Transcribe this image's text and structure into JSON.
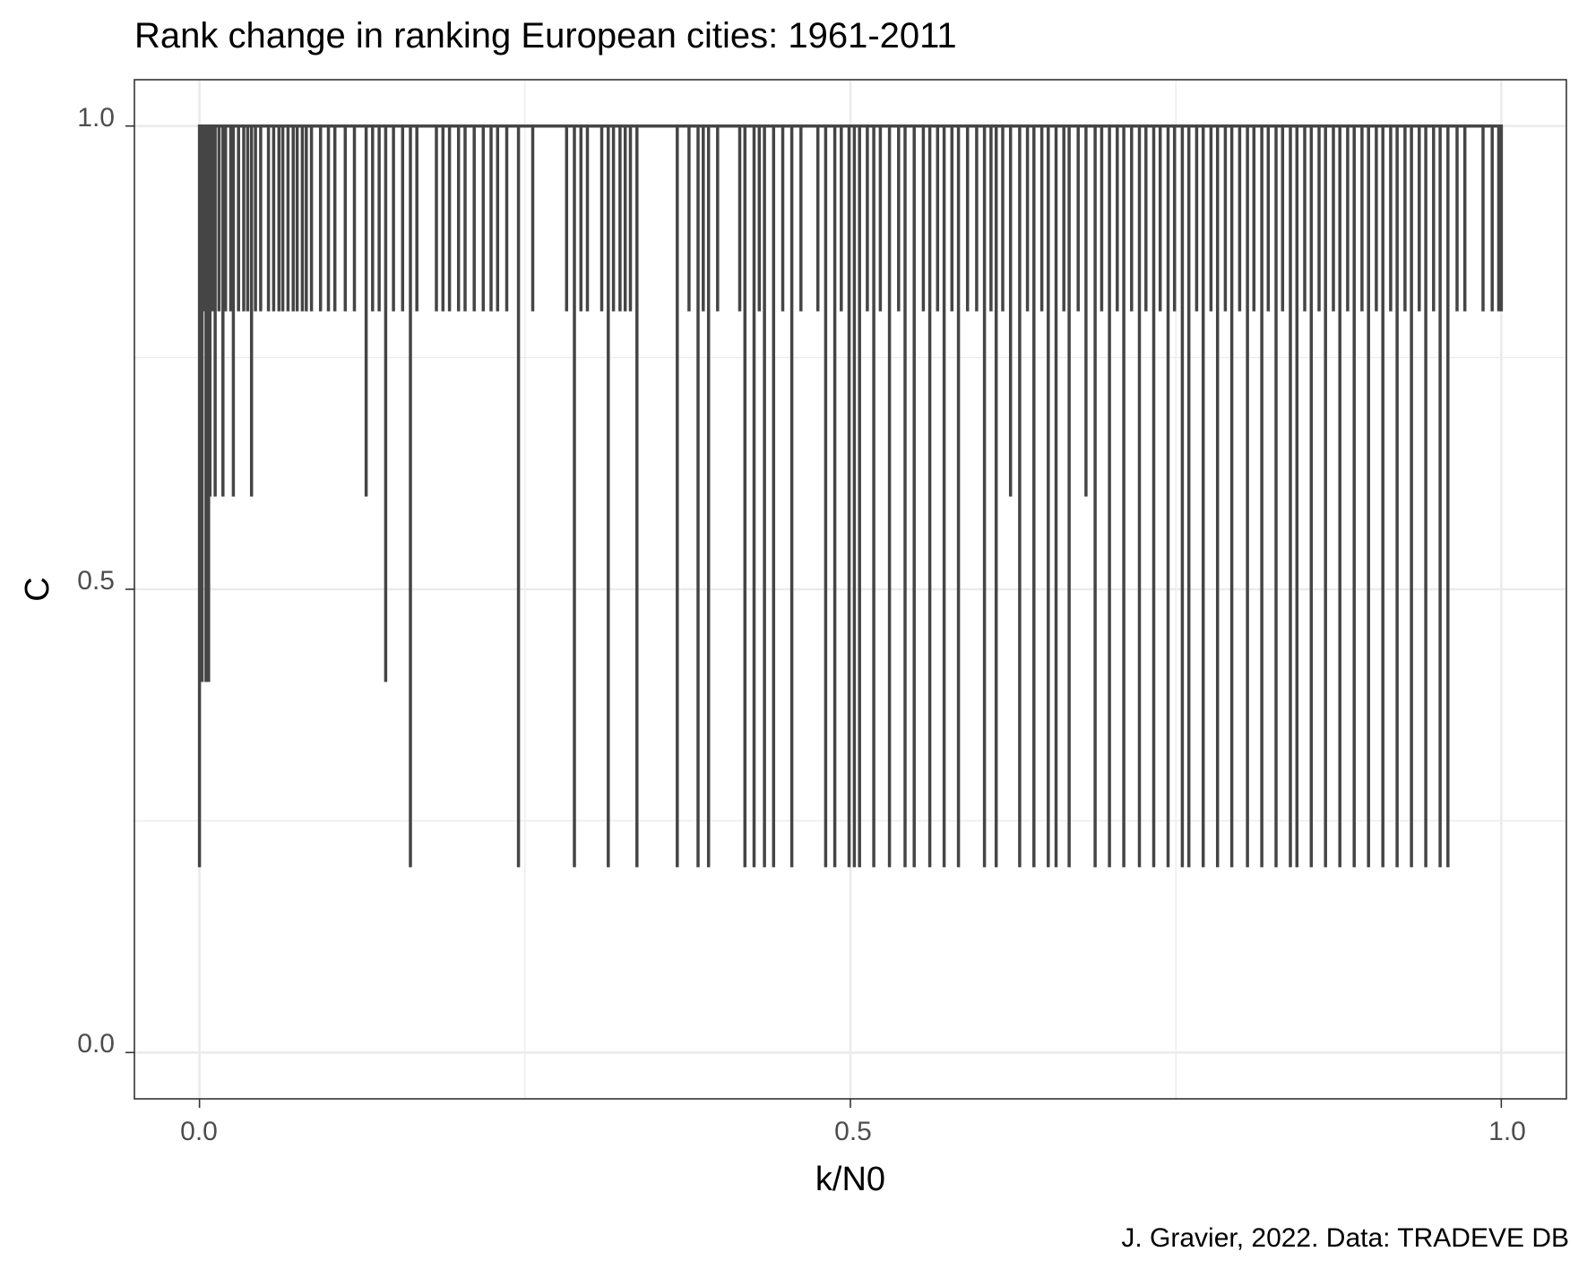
{
  "chart_data": {
    "type": "line",
    "title": "Rank change in ranking European cities: 1961-2011",
    "xlabel": "k/N0",
    "ylabel": "C",
    "caption": "J. Gravier, 2022. Data: TRADEVE DB",
    "xlim": [
      -0.05,
      1.05
    ],
    "ylim": [
      -0.05,
      1.05
    ],
    "x_ticks": [
      "0.0",
      "0.5",
      "1.0"
    ],
    "y_ticks": [
      "0.0",
      "0.5",
      "1.0"
    ],
    "grid": true,
    "baseline": 1.0,
    "series": [
      {
        "color": "#454545",
        "note": "Step series: value equals 1.0 except at the listed dips (x, y)",
        "dips": [
          [
            0.0,
            0.2
          ],
          [
            0.001,
            0.6
          ],
          [
            0.002,
            0.4
          ],
          [
            0.004,
            0.8
          ],
          [
            0.005,
            0.4
          ],
          [
            0.007,
            0.4
          ],
          [
            0.008,
            0.6
          ],
          [
            0.01,
            0.8
          ],
          [
            0.012,
            0.6
          ],
          [
            0.015,
            0.8
          ],
          [
            0.018,
            0.6
          ],
          [
            0.02,
            0.8
          ],
          [
            0.024,
            0.8
          ],
          [
            0.026,
            0.6
          ],
          [
            0.03,
            0.8
          ],
          [
            0.034,
            0.8
          ],
          [
            0.037,
            0.8
          ],
          [
            0.04,
            0.6
          ],
          [
            0.043,
            0.8
          ],
          [
            0.047,
            0.8
          ],
          [
            0.053,
            0.8
          ],
          [
            0.057,
            0.8
          ],
          [
            0.061,
            0.8
          ],
          [
            0.064,
            0.8
          ],
          [
            0.068,
            0.8
          ],
          [
            0.072,
            0.8
          ],
          [
            0.075,
            0.8
          ],
          [
            0.079,
            0.8
          ],
          [
            0.082,
            0.8
          ],
          [
            0.086,
            0.8
          ],
          [
            0.093,
            0.8
          ],
          [
            0.099,
            0.8
          ],
          [
            0.104,
            0.8
          ],
          [
            0.112,
            0.8
          ],
          [
            0.119,
            0.8
          ],
          [
            0.128,
            0.6
          ],
          [
            0.133,
            0.8
          ],
          [
            0.138,
            0.8
          ],
          [
            0.143,
            0.4
          ],
          [
            0.149,
            0.8
          ],
          [
            0.156,
            0.8
          ],
          [
            0.162,
            0.2
          ],
          [
            0.167,
            0.8
          ],
          [
            0.182,
            0.8
          ],
          [
            0.187,
            0.8
          ],
          [
            0.192,
            0.8
          ],
          [
            0.199,
            0.8
          ],
          [
            0.204,
            0.8
          ],
          [
            0.211,
            0.8
          ],
          [
            0.218,
            0.8
          ],
          [
            0.224,
            0.8
          ],
          [
            0.229,
            0.8
          ],
          [
            0.236,
            0.8
          ],
          [
            0.245,
            0.2
          ],
          [
            0.256,
            0.8
          ],
          [
            0.282,
            0.8
          ],
          [
            0.288,
            0.2
          ],
          [
            0.293,
            0.8
          ],
          [
            0.298,
            0.8
          ],
          [
            0.309,
            0.8
          ],
          [
            0.314,
            0.2
          ],
          [
            0.318,
            0.8
          ],
          [
            0.323,
            0.8
          ],
          [
            0.327,
            0.8
          ],
          [
            0.331,
            0.8
          ],
          [
            0.336,
            0.2
          ],
          [
            0.367,
            0.2
          ],
          [
            0.376,
            0.8
          ],
          [
            0.383,
            0.2
          ],
          [
            0.387,
            0.8
          ],
          [
            0.391,
            0.2
          ],
          [
            0.398,
            0.8
          ],
          [
            0.415,
            0.8
          ],
          [
            0.419,
            0.2
          ],
          [
            0.426,
            0.2
          ],
          [
            0.43,
            0.8
          ],
          [
            0.434,
            0.2
          ],
          [
            0.441,
            0.2
          ],
          [
            0.448,
            0.8
          ],
          [
            0.455,
            0.2
          ],
          [
            0.462,
            0.8
          ],
          [
            0.475,
            0.8
          ],
          [
            0.481,
            0.2
          ],
          [
            0.488,
            0.2
          ],
          [
            0.493,
            0.8
          ],
          [
            0.499,
            0.2
          ],
          [
            0.503,
            0.2
          ],
          [
            0.507,
            0.2
          ],
          [
            0.513,
            0.8
          ],
          [
            0.518,
            0.2
          ],
          [
            0.523,
            0.8
          ],
          [
            0.53,
            0.2
          ],
          [
            0.537,
            0.8
          ],
          [
            0.542,
            0.2
          ],
          [
            0.549,
            0.2
          ],
          [
            0.556,
            0.8
          ],
          [
            0.561,
            0.2
          ],
          [
            0.567,
            0.8
          ],
          [
            0.572,
            0.2
          ],
          [
            0.578,
            0.8
          ],
          [
            0.583,
            0.2
          ],
          [
            0.59,
            0.8
          ],
          [
            0.597,
            0.8
          ],
          [
            0.603,
            0.2
          ],
          [
            0.608,
            0.8
          ],
          [
            0.612,
            0.2
          ],
          [
            0.617,
            0.8
          ],
          [
            0.623,
            0.6
          ],
          [
            0.63,
            0.2
          ],
          [
            0.636,
            0.8
          ],
          [
            0.641,
            0.2
          ],
          [
            0.647,
            0.8
          ],
          [
            0.652,
            0.2
          ],
          [
            0.658,
            0.2
          ],
          [
            0.664,
            0.8
          ],
          [
            0.668,
            0.2
          ],
          [
            0.675,
            0.8
          ],
          [
            0.681,
            0.6
          ],
          [
            0.688,
            0.2
          ],
          [
            0.693,
            0.8
          ],
          [
            0.699,
            0.2
          ],
          [
            0.705,
            0.8
          ],
          [
            0.71,
            0.2
          ],
          [
            0.716,
            0.8
          ],
          [
            0.722,
            0.2
          ],
          [
            0.727,
            0.8
          ],
          [
            0.733,
            0.2
          ],
          [
            0.738,
            0.8
          ],
          [
            0.744,
            0.2
          ],
          [
            0.749,
            0.8
          ],
          [
            0.755,
            0.2
          ],
          [
            0.76,
            0.2
          ],
          [
            0.766,
            0.8
          ],
          [
            0.771,
            0.2
          ],
          [
            0.777,
            0.8
          ],
          [
            0.782,
            0.2
          ],
          [
            0.788,
            0.8
          ],
          [
            0.793,
            0.2
          ],
          [
            0.799,
            0.8
          ],
          [
            0.805,
            0.2
          ],
          [
            0.81,
            0.8
          ],
          [
            0.816,
            0.2
          ],
          [
            0.821,
            0.8
          ],
          [
            0.827,
            0.2
          ],
          [
            0.832,
            0.8
          ],
          [
            0.838,
            0.2
          ],
          [
            0.843,
            0.2
          ],
          [
            0.849,
            0.8
          ],
          [
            0.854,
            0.2
          ],
          [
            0.86,
            0.8
          ],
          [
            0.865,
            0.2
          ],
          [
            0.871,
            0.8
          ],
          [
            0.876,
            0.2
          ],
          [
            0.882,
            0.8
          ],
          [
            0.887,
            0.2
          ],
          [
            0.893,
            0.8
          ],
          [
            0.898,
            0.2
          ],
          [
            0.904,
            0.8
          ],
          [
            0.909,
            0.2
          ],
          [
            0.915,
            0.8
          ],
          [
            0.92,
            0.2
          ],
          [
            0.926,
            0.8
          ],
          [
            0.931,
            0.2
          ],
          [
            0.937,
            0.8
          ],
          [
            0.942,
            0.2
          ],
          [
            0.948,
            0.8
          ],
          [
            0.953,
            0.2
          ],
          [
            0.959,
            0.2
          ],
          [
            0.966,
            0.8
          ],
          [
            0.972,
            0.8
          ],
          [
            0.986,
            0.8
          ],
          [
            0.993,
            0.8
          ],
          [
            0.998,
            0.8
          ]
        ]
      }
    ]
  }
}
